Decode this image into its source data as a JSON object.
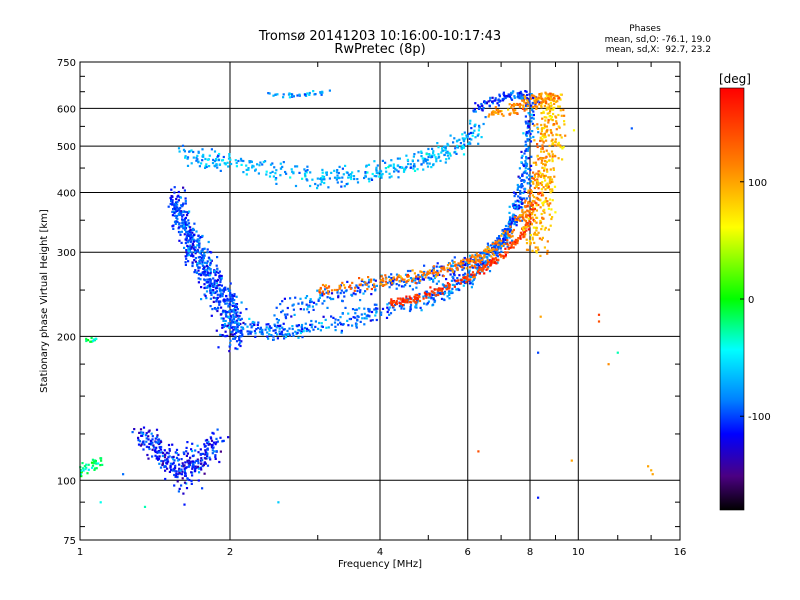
{
  "chart_data": {
    "type": "scatter",
    "title": "Tromsø 20141203 10:16:00-10:17:43",
    "subtitle": "RwPretec (8p)",
    "xlabel": "Frequency [MHz]",
    "ylabel": "Stationary phase Virtual Height [km]",
    "x_scale": "log",
    "y_scale": "log",
    "xlim": [
      1,
      16
    ],
    "ylim": [
      75,
      750
    ],
    "x_ticks": [
      1,
      2,
      4,
      6,
      8,
      10,
      16
    ],
    "y_ticks": [
      75,
      100,
      200,
      300,
      400,
      500,
      600,
      750
    ],
    "grid": true,
    "stats": {
      "title": "Phases",
      "o_line": "mean, sd,O: -76.1, 19.0",
      "x_line": "mean, sd,X:  92.7, 23.2"
    },
    "colorbar": {
      "label": "[deg]",
      "range": [
        -180,
        180
      ],
      "ticks": [
        100,
        0,
        -100
      ],
      "palette": [
        "#ff0000",
        "#ff8000",
        "#ffff00",
        "#00ff00",
        "#00ffff",
        "#0080ff",
        "#0000ff",
        "#000000"
      ]
    },
    "traces": [
      {
        "x": [
          2.4,
          2.6,
          2.8,
          3.0,
          3.2
        ],
        "y": [
          640,
          638,
          642,
          645,
          648
        ],
        "phase": -80,
        "sx": 0.05,
        "sy": 10,
        "n": 35
      },
      {
        "x": [
          1.6,
          1.8,
          2.0,
          2.4,
          2.8,
          3.2,
          3.6,
          4.0,
          4.5,
          5.0,
          5.5,
          6.0,
          6.3
        ],
        "y": [
          485,
          470,
          460,
          445,
          435,
          430,
          435,
          445,
          455,
          470,
          490,
          515,
          560
        ],
        "phase": -70,
        "sx": 0.08,
        "sy": 28,
        "n": 420
      },
      {
        "x": [
          1.55,
          1.62,
          1.7,
          1.8,
          1.9,
          2.0,
          2.1
        ],
        "y": [
          390,
          340,
          300,
          270,
          245,
          225,
          210
        ],
        "phase": -100,
        "sx": 0.06,
        "sy": 40,
        "n": 650
      },
      {
        "x": [
          2.0,
          2.3,
          2.6,
          3.0,
          3.5,
          4.0,
          4.5,
          5.0,
          5.5,
          6.0,
          6.5,
          7.0,
          7.4,
          7.7,
          7.9,
          8.0
        ],
        "y": [
          210,
          205,
          205,
          210,
          218,
          225,
          232,
          240,
          250,
          262,
          280,
          310,
          360,
          430,
          520,
          620
        ],
        "phase": -90,
        "sx": 0.04,
        "sy": 12,
        "n": 620
      },
      {
        "x": [
          2.5,
          3.0,
          3.5,
          4.0,
          4.5,
          5.0,
          5.5,
          6.0,
          6.5,
          7.0,
          7.5,
          7.9,
          8.2
        ],
        "y": [
          225,
          240,
          250,
          258,
          262,
          268,
          275,
          282,
          295,
          315,
          350,
          420,
          560
        ],
        "phase": -95,
        "sx": 0.05,
        "sy": 15,
        "n": 420
      },
      {
        "x": [
          6.3,
          6.8,
          7.3,
          7.7,
          8.0,
          8.2
        ],
        "y": [
          600,
          620,
          640,
          640,
          630,
          610
        ],
        "phase": -100,
        "sx": 0.08,
        "sy": 15,
        "n": 120
      },
      {
        "x": [
          4.2,
          4.6,
          5.0,
          5.5,
          6.0,
          6.5,
          7.0,
          7.5,
          8.0,
          8.3
        ],
        "y": [
          235,
          238,
          245,
          255,
          265,
          280,
          295,
          315,
          345,
          400
        ],
        "phase": 150,
        "sx": 0.04,
        "sy": 6,
        "n": 260
      },
      {
        "x": [
          3.0,
          3.5,
          4.0,
          4.5,
          5.0,
          5.5,
          6.0,
          6.5,
          7.0,
          7.5,
          8.0,
          8.3,
          8.5
        ],
        "y": [
          250,
          255,
          260,
          265,
          270,
          278,
          285,
          298,
          315,
          340,
          380,
          440,
          520
        ],
        "phase": 120,
        "sx": 0.05,
        "sy": 10,
        "n": 320
      },
      {
        "x": [
          8.2,
          8.4,
          8.6,
          8.7,
          8.8,
          8.8,
          8.8,
          8.7
        ],
        "y": [
          300,
          350,
          400,
          450,
          500,
          550,
          600,
          640
        ],
        "phase": 90,
        "sx": 0.12,
        "sy": 20,
        "n": 320
      },
      {
        "x": [
          7.0,
          7.5,
          8.0,
          8.4,
          8.8
        ],
        "y": [
          580,
          600,
          615,
          630,
          640
        ],
        "phase": 110,
        "sx": 0.15,
        "sy": 15,
        "n": 120
      },
      {
        "x": [
          1.3,
          1.4,
          1.5,
          1.6,
          1.7,
          1.8,
          1.9
        ],
        "y": [
          125,
          120,
          110,
          105,
          108,
          115,
          120
        ],
        "phase": -110,
        "sx": 0.07,
        "sy": 12,
        "n": 320
      },
      {
        "x": [
          1.0,
          1.05,
          1.1
        ],
        "y": [
          105,
          108,
          110
        ],
        "phase": -20,
        "sx": 0.04,
        "sy": 4,
        "n": 40
      },
      {
        "x": [
          1.03,
          1.08
        ],
        "y": [
          195,
          197
        ],
        "phase": -20,
        "sx": 0.03,
        "sy": 4,
        "n": 12
      }
    ],
    "points": [
      {
        "x": 12.8,
        "y": 545,
        "phase": -95
      },
      {
        "x": 9.8,
        "y": 540,
        "phase": 60
      },
      {
        "x": 8.3,
        "y": 185,
        "phase": -100
      },
      {
        "x": 8.4,
        "y": 220,
        "phase": 100
      },
      {
        "x": 11.0,
        "y": 215,
        "phase": 140
      },
      {
        "x": 11.0,
        "y": 222,
        "phase": 150
      },
      {
        "x": 12.0,
        "y": 185,
        "phase": -30
      },
      {
        "x": 11.5,
        "y": 175,
        "phase": 110
      },
      {
        "x": 6.3,
        "y": 115,
        "phase": 140
      },
      {
        "x": 14.0,
        "y": 105,
        "phase": 95
      },
      {
        "x": 14.1,
        "y": 103,
        "phase": 100
      },
      {
        "x": 13.8,
        "y": 107,
        "phase": 100
      },
      {
        "x": 8.3,
        "y": 92,
        "phase": -110
      },
      {
        "x": 1.35,
        "y": 88,
        "phase": -30
      },
      {
        "x": 1.1,
        "y": 90,
        "phase": -40
      },
      {
        "x": 1.22,
        "y": 103,
        "phase": -90
      },
      {
        "x": 2.5,
        "y": 90,
        "phase": -60
      },
      {
        "x": 1.62,
        "y": 89,
        "phase": -110
      },
      {
        "x": 9.7,
        "y": 110,
        "phase": 100
      }
    ]
  }
}
